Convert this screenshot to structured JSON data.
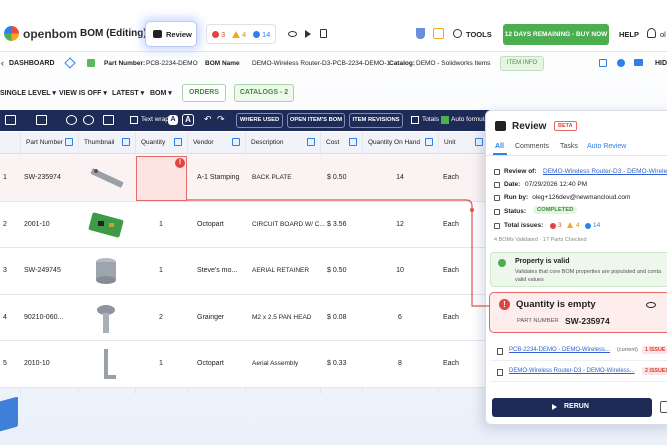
{
  "top_bar": {
    "logo": "openbom",
    "bom_title": "BOM (Editing)",
    "review_button": "Review",
    "issues": {
      "errors": "3",
      "warnings": "4",
      "info": "14"
    },
    "tools": "TOOLS",
    "trial_button": "12 DAYS REMAINING - BUY NOW",
    "help": "HELP",
    "user": "ol"
  },
  "bom_bar": {
    "dashboard": "DASHBOARD",
    "part_number_label": "Part Number:",
    "part_number": "PCB-2234-DEMO",
    "bom_name_label": "BOM Name",
    "bom_name": "DEMO-Wireless Router-D3-PCB-2234-DEMO-1",
    "catalog_label": "Catalog:",
    "catalog": "DEMO - Solidworks Items",
    "item_info": "ITEM INFO",
    "hide": "HIDE"
  },
  "view_bar": {
    "level": "SINGLE LEVEL",
    "view": "VIEW IS OFF",
    "revision": "LATEST",
    "mode": "BOM",
    "orders": "ORDERS",
    "catalogs": "CATALOGS - 2"
  },
  "toolbar": {
    "text_wrap": "Text wrap",
    "font_small": "A",
    "font_large": "A",
    "where_used": "WHERE USED",
    "open_bom": "OPEN ITEM'S BOM",
    "item_revisions": "ITEM REVISIONS",
    "totals": "Totals",
    "auto_formula": "Auto formula"
  },
  "table": {
    "headers": [
      "Part Number",
      "Thumbnail",
      "Quantity",
      "Vendor",
      "Description",
      "Cost",
      "Quantity On Hand",
      "Unit"
    ],
    "rows": [
      {
        "index": "1",
        "part_number": "SW-235974",
        "vendor": "A-1 Stamping",
        "description": "BACK PLATE",
        "cost": "$ 0.50",
        "on_hand": "14",
        "unit": "Each"
      },
      {
        "index": "2",
        "part_number": "2001-10",
        "quantity": "1",
        "vendor": "Octopart",
        "description": "CIRCUIT BOARD W/ C...",
        "cost": "$ 3.56",
        "on_hand": "12",
        "unit": "Each"
      },
      {
        "index": "3",
        "part_number": "SW-249745",
        "quantity": "1",
        "vendor": "Steve's mo...",
        "description": "AERIAL RETAINER",
        "cost": "$ 0.50",
        "on_hand": "10",
        "unit": "Each"
      },
      {
        "index": "4",
        "part_number": "90210-060...",
        "quantity": "2",
        "vendor": "Grainger",
        "description": "M2 x 2.5 PAN HEAD",
        "cost": "$ 0.08",
        "on_hand": "6",
        "unit": "Each"
      },
      {
        "index": "5",
        "part_number": "2010-10",
        "quantity": "1",
        "vendor": "Octopart",
        "description": "Aerial Assembly",
        "cost": "$ 0.33",
        "on_hand": "8",
        "unit": "Each"
      }
    ]
  },
  "review_panel": {
    "title": "Review",
    "badge": "BETA",
    "tabs": [
      "All",
      "Comments",
      "Tasks",
      "Auto Review"
    ],
    "review_of_label": "Review of:",
    "review_of": "DEMO-Wireless Router-D3 - DEMO-Wireless Rout...",
    "date_label": "Date:",
    "date": "07/29/2026 12:40 PM",
    "run_by_label": "Run by:",
    "run_by": "oleg+126dev@newmancloud.com",
    "status_label": "Status:",
    "status": "COMPLETED",
    "total_issues_label": "Total issues:",
    "issues": {
      "errors": "3",
      "warnings": "4",
      "info": "14"
    },
    "summary": "4 BOMs Validated · 17 Parts Checked",
    "valid_title": "Property is valid",
    "valid_text": [
      "Validates that core BOM properties are populated and conta",
      "valid values"
    ],
    "issue_title": "Quantity is empty",
    "issue_field": "PART NUMBER",
    "issue_value": "SW-235974",
    "boms": [
      {
        "name": "PCB-2234-DEMO - DEMO-Wireless...",
        "note": "(current)",
        "issues": "1 ISSUE"
      },
      {
        "name": "DEMO-Wireless Router-D3 - DEMO-Wireless...",
        "issues": "2 ISSUES"
      }
    ],
    "rerun": "RERUN"
  }
}
